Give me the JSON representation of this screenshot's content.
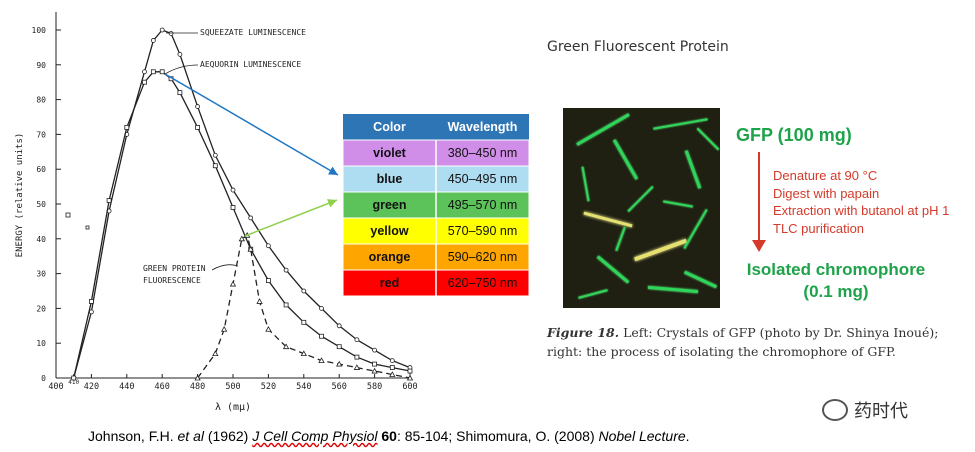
{
  "chart_data": {
    "type": "line",
    "xlabel": "λ (mμ)",
    "ylabel": "ENERGY (relative units)",
    "xlim": [
      400,
      600
    ],
    "ylim": [
      0,
      100
    ],
    "x_ticks": [
      "400",
      "410",
      "420",
      "440",
      "460",
      "480",
      "500",
      "520",
      "540",
      "560",
      "580",
      "600"
    ],
    "y_ticks": [
      "0",
      "10",
      "20",
      "30",
      "40",
      "50",
      "60",
      "70",
      "80",
      "90",
      "100"
    ],
    "series": [
      {
        "name": "SQUEEZATE LUMINESCENCE",
        "style": "solid",
        "x": [
          410,
          420,
          430,
          440,
          450,
          455,
          460,
          465,
          470,
          480,
          490,
          500,
          510,
          520,
          530,
          540,
          550,
          560,
          570,
          580,
          590,
          600
        ],
        "y": [
          0,
          19,
          48,
          70,
          88,
          97,
          100,
          99,
          93,
          78,
          64,
          54,
          46,
          38,
          31,
          25,
          20,
          15,
          11,
          8,
          5,
          3
        ]
      },
      {
        "name": "AEQUORIN LUMINESCENCE",
        "style": "solid",
        "x": [
          410,
          420,
          430,
          440,
          450,
          455,
          460,
          465,
          470,
          480,
          490,
          500,
          510,
          520,
          530,
          540,
          550,
          560,
          570,
          580,
          590,
          600
        ],
        "y": [
          0,
          22,
          51,
          72,
          85,
          88,
          88,
          86,
          82,
          72,
          61,
          49,
          37,
          28,
          21,
          16,
          12,
          9,
          6,
          4,
          3,
          2
        ]
      },
      {
        "name": "GREEN PROTEIN FLUORESCENCE",
        "style": "dashed",
        "x": [
          480,
          490,
          495,
          500,
          505,
          508,
          510,
          515,
          520,
          530,
          540,
          550,
          560,
          570,
          580,
          590,
          600
        ],
        "y": [
          0,
          7,
          14,
          27,
          40,
          41,
          37,
          22,
          14,
          9,
          7,
          5,
          4,
          3,
          2,
          1,
          0
        ]
      }
    ],
    "annotations": [
      "SQUEEZATE LUMINESCENCE",
      "AEQUORIN LUMINESCENCE",
      "GREEN PROTEIN FLUORESCENCE"
    ]
  },
  "color_table": {
    "headers": [
      "Color",
      "Wavelength"
    ],
    "rows": [
      {
        "color": "violet",
        "range": "380–450 nm",
        "bg": "#d08ee8"
      },
      {
        "color": "blue",
        "range": "450–495 nm",
        "bg": "#aedcf0"
      },
      {
        "color": "green",
        "range": "495–570 nm",
        "bg": "#5cc25a"
      },
      {
        "color": "yellow",
        "range": "570–590 nm",
        "bg": "#ffff00"
      },
      {
        "color": "orange",
        "range": "590–620 nm",
        "bg": "#ffa500"
      },
      {
        "color": "red",
        "range": "620–750 nm",
        "bg": "#ff0000"
      }
    ],
    "header_bg": "#2e75b6"
  },
  "right_title": "Green Fluorescent Protein",
  "gfp_process": {
    "start": "GFP (100 mg)",
    "steps": [
      "Denature at 90 °C",
      "Digest with papain",
      "Extraction with butanol at pH 1",
      "TLC purification"
    ],
    "end_line1": "Isolated chromophore",
    "end_line2": "(0.1 mg)"
  },
  "caption": {
    "label": "Figure 18.",
    "text": "Left: Crystals of GFP (photo by Dr. Shinya Inoué); right: the process of isolating the chromophore of GFP."
  },
  "citation": {
    "p1": "Johnson, F.H. ",
    "etal": "et al",
    "p2": " (1962) ",
    "journal": "J Cell Comp Physiol",
    "vol": "60",
    "p3": ": 85-104; Shimomura, O. (2008) ",
    "lecture": "Nobel Lecture",
    "p4": "."
  },
  "watermark": "药时代"
}
